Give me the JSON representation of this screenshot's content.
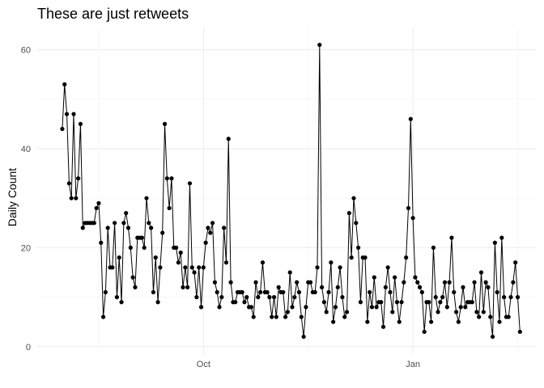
{
  "chart_data": {
    "type": "line",
    "title": "These are just retweets",
    "xlabel": "",
    "ylabel": "Daily Count",
    "x_ticks": [
      {
        "label": "Oct",
        "day": 62
      },
      {
        "label": "Jan",
        "day": 154
      }
    ],
    "y_ticks": [
      0,
      20,
      40,
      60
    ],
    "xlim": [
      -11,
      208
    ],
    "ylim": [
      -1.5,
      64.5
    ],
    "grid": true,
    "markers": true,
    "series": [
      {
        "values": [
          44,
          53,
          47,
          33,
          30,
          47,
          30,
          34,
          45,
          24,
          25,
          25,
          25,
          25,
          25,
          28,
          29,
          21,
          6,
          11,
          24,
          16,
          16,
          25,
          10,
          18,
          9,
          25,
          27,
          24,
          20,
          14,
          12,
          22,
          22,
          22,
          20,
          30,
          25,
          24,
          11,
          18,
          9,
          16,
          23,
          45,
          34,
          28,
          34,
          20,
          20,
          17,
          19,
          12,
          16,
          12,
          33,
          16,
          15,
          10,
          16,
          8,
          16,
          21,
          24,
          23,
          25,
          13,
          11,
          8,
          10,
          24,
          17,
          42,
          13,
          9,
          9,
          11,
          11,
          11,
          9,
          10,
          8,
          8,
          6,
          13,
          10,
          11,
          17,
          11,
          11,
          10,
          6,
          10,
          6,
          12,
          11,
          11,
          6,
          7,
          15,
          8,
          10,
          13,
          11,
          6,
          2,
          8,
          13,
          13,
          11,
          11,
          16,
          61,
          12,
          9,
          7,
          11,
          17,
          5,
          8,
          12,
          16,
          10,
          6,
          7,
          27,
          18,
          30,
          25,
          20,
          9,
          18,
          18,
          5,
          11,
          8,
          14,
          8,
          9,
          9,
          4,
          12,
          16,
          11,
          7,
          14,
          9,
          5,
          9,
          13,
          18,
          28,
          46,
          26,
          14,
          13,
          12,
          11,
          3,
          9,
          9,
          5,
          20,
          10,
          7,
          9,
          10,
          13,
          8,
          13,
          22,
          11,
          7,
          5,
          8,
          12,
          8,
          9,
          9,
          9,
          13,
          7,
          6,
          15,
          7,
          13,
          12,
          6,
          2,
          21,
          11,
          5,
          22,
          10,
          6,
          6,
          10,
          13,
          17,
          10,
          3
        ]
      }
    ]
  }
}
